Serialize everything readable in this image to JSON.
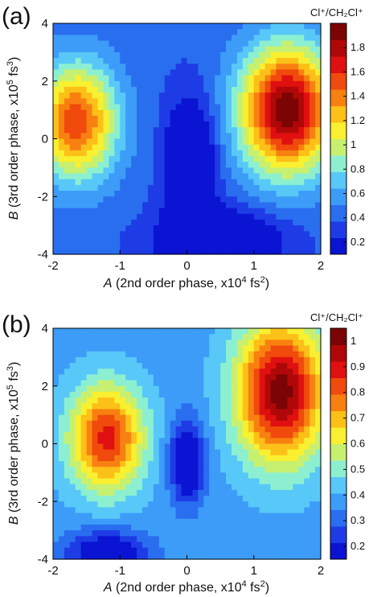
{
  "palette": [
    "#0a14d2",
    "#1e3ce6",
    "#2a6ef0",
    "#3c9cf8",
    "#58c8f8",
    "#8cf0d0",
    "#c8f070",
    "#f8f030",
    "#fcc018",
    "#f88010",
    "#f04a0c",
    "#e01010",
    "#b00808",
    "#7c0404"
  ],
  "chart_data": [
    {
      "type": "heatmap",
      "panel_label": "(a)",
      "xlabel_italic": "A",
      "xlabel_rest": " (2nd order phase, x10",
      "xlabel_exp": "4",
      "xlabel_unit": " fs",
      "xlabel_unit_exp": "2",
      "xlabel_close": ")",
      "ylabel_italic": "B",
      "ylabel_rest": " (3rd order phase, x10",
      "ylabel_exp": "5",
      "ylabel_unit": " fs",
      "ylabel_unit_exp": "3",
      "ylabel_close": ")",
      "xlim": [
        -2,
        2
      ],
      "ylim": [
        -4,
        4
      ],
      "xticks": [
        "-2",
        "-1",
        "0",
        "1",
        "2"
      ],
      "yticks": [
        "4",
        "2",
        "0",
        "-2",
        "-4"
      ],
      "colorbar_title": "Cl⁺/CH₂Cl⁺",
      "colorbar_ticks": [
        "1.8",
        "1.6",
        "1.4",
        "1.2",
        "1",
        "0.8",
        "0.6",
        "0.4",
        "0.2"
      ],
      "clim": [
        0.1,
        2.0
      ],
      "peaks": [
        {
          "x": 1.5,
          "y": 1.0,
          "value": 1.95,
          "sx": 0.7,
          "sy": 2.2
        },
        {
          "x": -1.65,
          "y": 0.6,
          "value": 1.55,
          "sx": 0.6,
          "sy": 2.0
        }
      ],
      "valleys": [
        {
          "x": 0.05,
          "y": -1.0,
          "value": -0.25,
          "sx": 0.35,
          "sy": 2.2
        },
        {
          "x": 0.5,
          "y": -3.5,
          "value": -0.15,
          "sx": 0.9,
          "sy": 1.0
        }
      ],
      "baseline": 0.4
    },
    {
      "type": "heatmap",
      "panel_label": "(b)",
      "xlabel_italic": "A",
      "xlabel_rest": " (2nd order phase, x10",
      "xlabel_exp": "4",
      "xlabel_unit": " fs",
      "xlabel_unit_exp": "2",
      "xlabel_close": ")",
      "ylabel_italic": "B",
      "ylabel_rest": " (3rd order phase, x10",
      "ylabel_exp": "5",
      "ylabel_unit": " fs",
      "ylabel_unit_exp": "3",
      "ylabel_close": ")",
      "xlim": [
        -2,
        2
      ],
      "ylim": [
        -4,
        4
      ],
      "xticks": [
        "-2",
        "-1",
        "0",
        "1",
        "2"
      ],
      "yticks": [
        "4",
        "2",
        "0",
        "-2",
        "-4"
      ],
      "colorbar_title": "Cl⁺/CH₂Cl⁺",
      "colorbar_ticks": [
        "1",
        "0.9",
        "0.8",
        "0.7",
        "0.6",
        "0.5",
        "0.4",
        "0.3",
        "0.2"
      ],
      "clim": [
        0.15,
        1.05
      ],
      "peaks": [
        {
          "x": 1.4,
          "y": 1.8,
          "value": 1.02,
          "sx": 0.65,
          "sy": 2.4
        },
        {
          "x": -1.2,
          "y": 0.2,
          "value": 0.88,
          "sx": 0.55,
          "sy": 1.8
        }
      ],
      "valleys": [
        {
          "x": 0.0,
          "y": -0.6,
          "value": 0.05,
          "sx": 0.25,
          "sy": 1.4
        },
        {
          "x": -1.2,
          "y": -3.8,
          "value": 0.1,
          "sx": 0.6,
          "sy": 0.8
        }
      ],
      "baseline": 0.38
    }
  ]
}
